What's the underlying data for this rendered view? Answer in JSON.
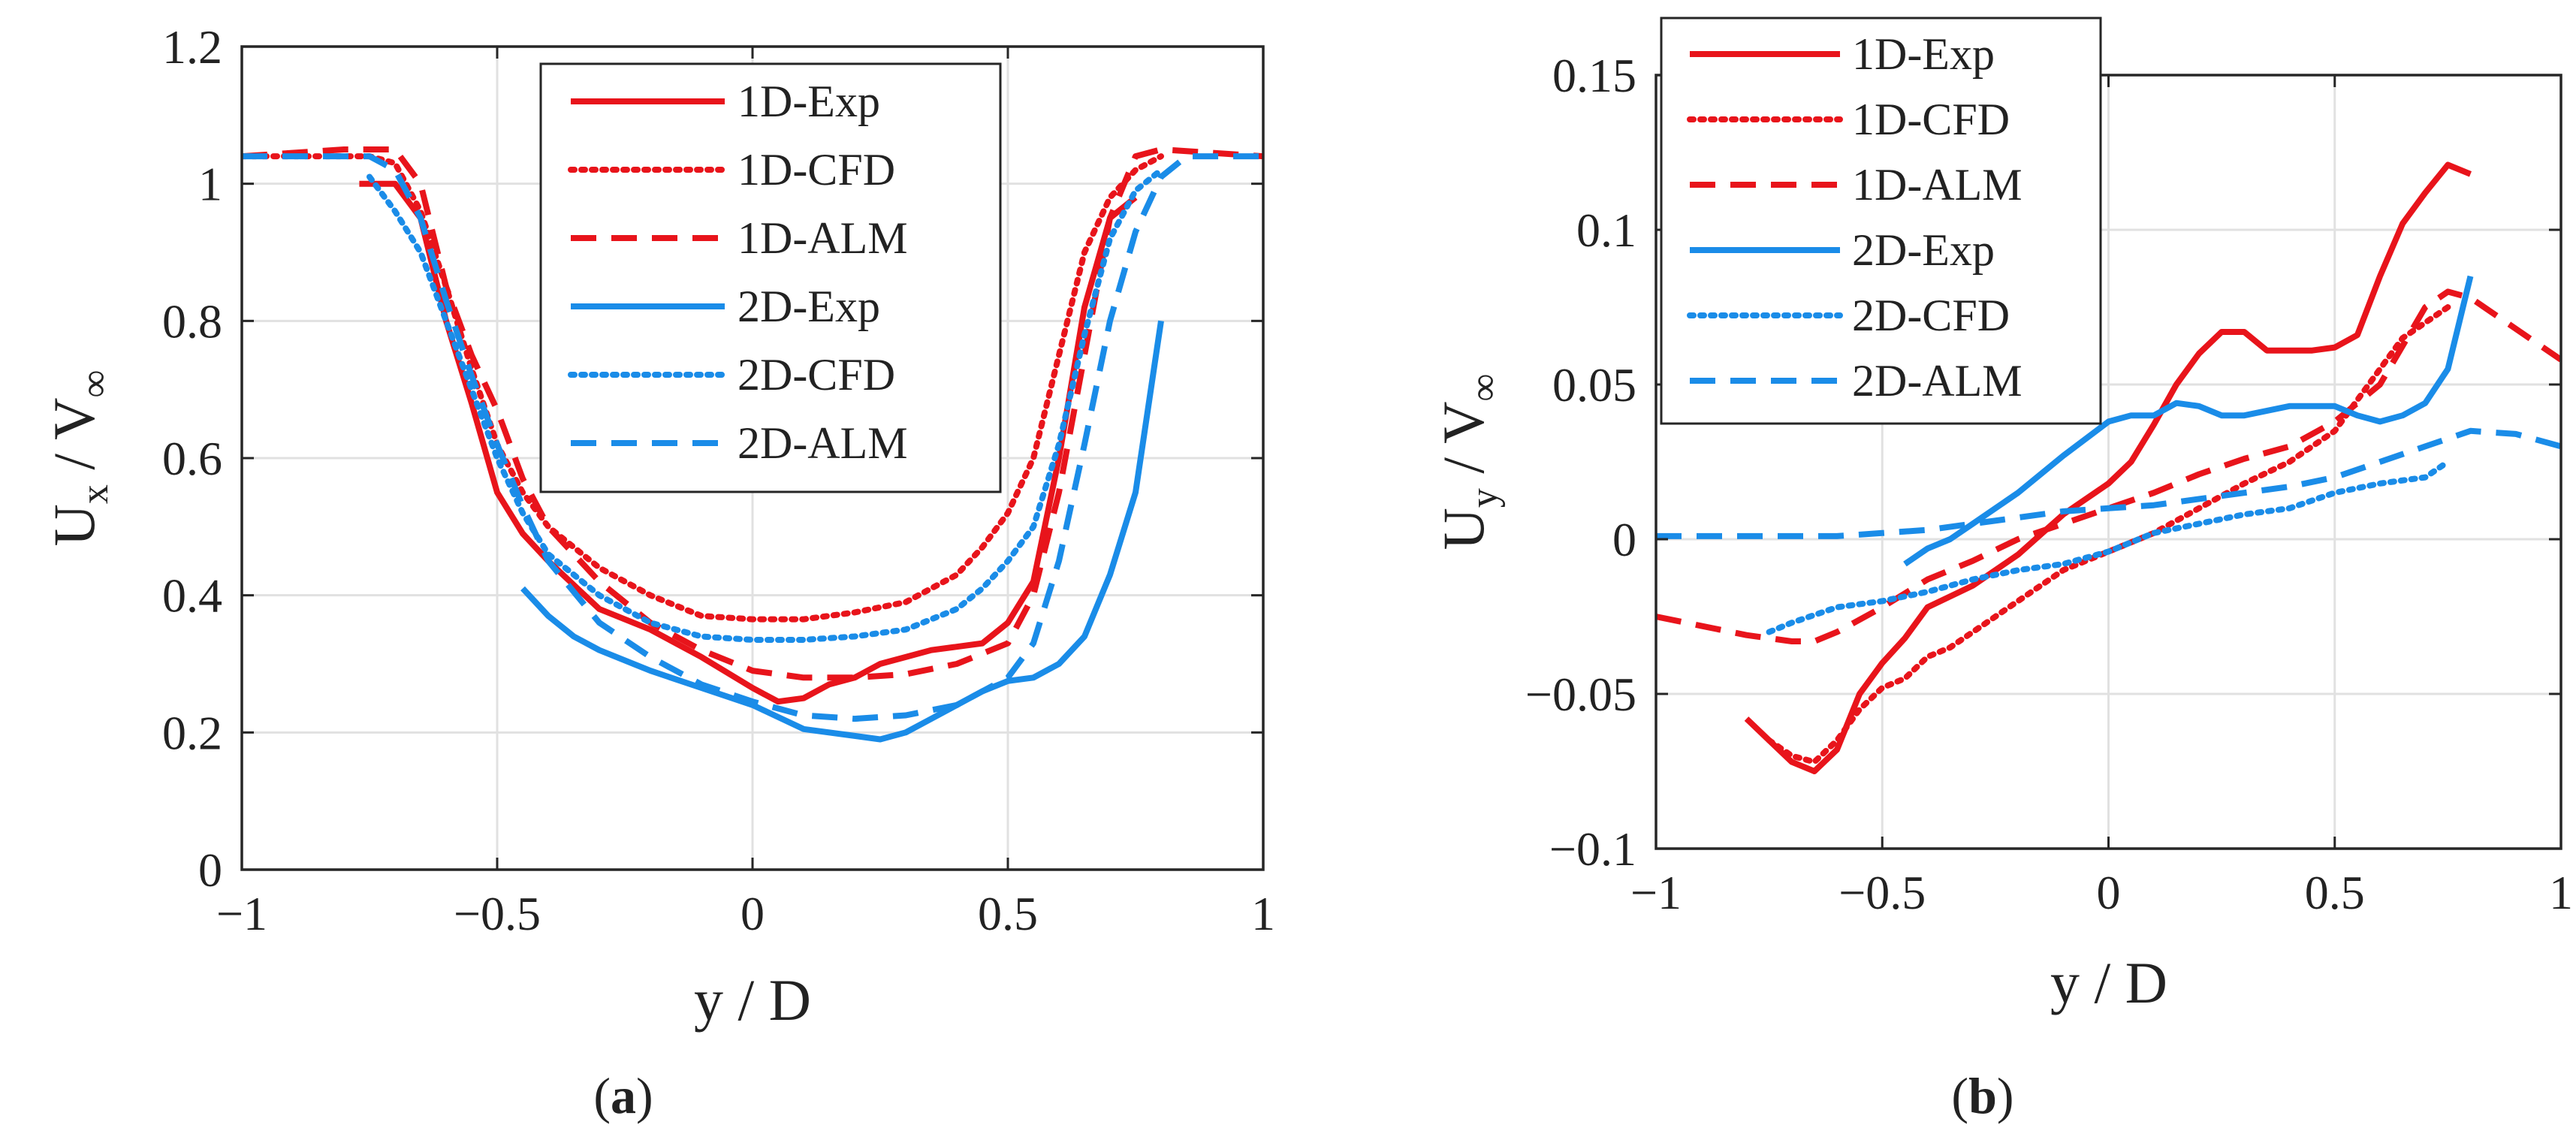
{
  "figure": {
    "captions": [
      {
        "open": "(",
        "letter": "a",
        "close": ")"
      },
      {
        "open": "(",
        "letter": "b",
        "close": ")"
      }
    ]
  },
  "styles": {
    "Exp": {
      "dash": "solid"
    },
    "CFD": {
      "dash": "dotted"
    },
    "ALM": {
      "dash": "dashed"
    }
  },
  "chart_data": [
    {
      "type": "line",
      "panel": "a",
      "xlabel": "y / D",
      "ylabel": {
        "main": "U",
        "sub": "x",
        "mid": " / V",
        "sub2": "∞"
      },
      "xlim": [
        -1,
        1
      ],
      "ylim": [
        0,
        1.2
      ],
      "xticks": [
        {
          "v": -1,
          "label": "−1"
        },
        {
          "v": -0.5,
          "label": "−0.5"
        },
        {
          "v": 0,
          "label": "0"
        },
        {
          "v": 0.5,
          "label": "0.5"
        },
        {
          "v": 1,
          "label": "1"
        }
      ],
      "yticks": [
        {
          "v": 0,
          "label": "0"
        },
        {
          "v": 0.2,
          "label": "0.2"
        },
        {
          "v": 0.4,
          "label": "0.4"
        },
        {
          "v": 0.6,
          "label": "0.6"
        },
        {
          "v": 0.8,
          "label": "0.8"
        },
        {
          "v": 1,
          "label": "1"
        },
        {
          "v": 1.2,
          "label": "1.2"
        }
      ],
      "grid": true,
      "legend": "top-center",
      "series": [
        {
          "name": "1D-Exp",
          "color": "#e8141b",
          "style": "Exp",
          "x": [
            -0.77,
            -0.7,
            -0.65,
            -0.6,
            -0.55,
            -0.5,
            -0.45,
            -0.4,
            -0.3,
            -0.2,
            -0.1,
            0,
            0.05,
            0.1,
            0.15,
            0.2,
            0.25,
            0.3,
            0.35,
            0.4,
            0.45,
            0.5,
            0.55,
            0.6,
            0.65,
            0.7,
            0.75
          ],
          "y": [
            1.0,
            1.0,
            0.95,
            0.8,
            0.68,
            0.55,
            0.49,
            0.45,
            0.38,
            0.35,
            0.31,
            0.265,
            0.245,
            0.25,
            0.27,
            0.28,
            0.3,
            0.31,
            0.32,
            0.325,
            0.33,
            0.36,
            0.42,
            0.6,
            0.82,
            0.95,
            0.98
          ]
        },
        {
          "name": "1D-CFD",
          "color": "#e8141b",
          "style": "CFD",
          "x": [
            -1,
            -0.75,
            -0.7,
            -0.65,
            -0.6,
            -0.55,
            -0.5,
            -0.45,
            -0.4,
            -0.3,
            -0.2,
            -0.1,
            0,
            0.1,
            0.2,
            0.3,
            0.35,
            0.4,
            0.45,
            0.5,
            0.55,
            0.6,
            0.65,
            0.7,
            0.75,
            0.8
          ],
          "y": [
            1.04,
            1.04,
            1.03,
            0.96,
            0.85,
            0.73,
            0.62,
            0.55,
            0.5,
            0.44,
            0.4,
            0.37,
            0.365,
            0.365,
            0.375,
            0.39,
            0.41,
            0.43,
            0.47,
            0.52,
            0.6,
            0.75,
            0.9,
            0.98,
            1.02,
            1.04
          ]
        },
        {
          "name": "1D-ALM",
          "color": "#e8141b",
          "style": "ALM",
          "x": [
            -1,
            -0.8,
            -0.7,
            -0.65,
            -0.6,
            -0.55,
            -0.5,
            -0.45,
            -0.4,
            -0.3,
            -0.2,
            -0.1,
            0,
            0.1,
            0.2,
            0.3,
            0.4,
            0.5,
            0.55,
            0.6,
            0.65,
            0.7,
            0.75,
            0.8,
            1
          ],
          "y": [
            1.04,
            1.05,
            1.05,
            1.0,
            0.85,
            0.75,
            0.67,
            0.57,
            0.5,
            0.42,
            0.36,
            0.32,
            0.29,
            0.28,
            0.28,
            0.285,
            0.3,
            0.33,
            0.4,
            0.55,
            0.75,
            0.95,
            1.04,
            1.05,
            1.04
          ]
        },
        {
          "name": "2D-Exp",
          "color": "#1a8ce8",
          "style": "Exp",
          "x": [
            -0.45,
            -0.4,
            -0.35,
            -0.3,
            -0.2,
            -0.1,
            0,
            0.1,
            0.2,
            0.25,
            0.3,
            0.35,
            0.4,
            0.45,
            0.5,
            0.55,
            0.6,
            0.65,
            0.7,
            0.75,
            0.8
          ],
          "y": [
            0.41,
            0.37,
            0.34,
            0.32,
            0.29,
            0.265,
            0.24,
            0.205,
            0.195,
            0.19,
            0.2,
            0.22,
            0.24,
            0.26,
            0.275,
            0.28,
            0.3,
            0.34,
            0.43,
            0.55,
            0.8
          ]
        },
        {
          "name": "2D-CFD",
          "color": "#1a8ce8",
          "style": "CFD",
          "x": [
            -0.75,
            -0.7,
            -0.65,
            -0.6,
            -0.55,
            -0.5,
            -0.45,
            -0.4,
            -0.3,
            -0.2,
            -0.1,
            0,
            0.1,
            0.2,
            0.3,
            0.4,
            0.45,
            0.5,
            0.55,
            0.6,
            0.65,
            0.7,
            0.75,
            0.8
          ],
          "y": [
            1.01,
            0.96,
            0.9,
            0.8,
            0.7,
            0.6,
            0.52,
            0.46,
            0.4,
            0.36,
            0.34,
            0.335,
            0.335,
            0.34,
            0.35,
            0.38,
            0.41,
            0.45,
            0.5,
            0.62,
            0.78,
            0.92,
            0.99,
            1.02
          ]
        },
        {
          "name": "2D-ALM",
          "color": "#1a8ce8",
          "style": "ALM",
          "x": [
            -1,
            -0.75,
            -0.7,
            -0.65,
            -0.6,
            -0.55,
            -0.5,
            -0.45,
            -0.4,
            -0.3,
            -0.2,
            -0.1,
            0,
            0.1,
            0.2,
            0.3,
            0.4,
            0.5,
            0.55,
            0.6,
            0.65,
            0.7,
            0.75,
            0.8,
            0.85,
            1
          ],
          "y": [
            1.04,
            1.04,
            1.02,
            0.95,
            0.83,
            0.72,
            0.62,
            0.53,
            0.45,
            0.36,
            0.31,
            0.27,
            0.245,
            0.225,
            0.22,
            0.225,
            0.24,
            0.28,
            0.33,
            0.45,
            0.62,
            0.8,
            0.93,
            1.01,
            1.04,
            1.04
          ]
        }
      ]
    },
    {
      "type": "line",
      "panel": "b",
      "xlabel": "y / D",
      "ylabel": {
        "main": "U",
        "sub": "y",
        "mid": " / V",
        "sub2": "∞"
      },
      "xlim": [
        -1,
        1
      ],
      "ylim": [
        -0.1,
        0.15
      ],
      "xticks": [
        {
          "v": -1,
          "label": "−1"
        },
        {
          "v": -0.5,
          "label": "−0.5"
        },
        {
          "v": 0,
          "label": "0"
        },
        {
          "v": 0.5,
          "label": "0.5"
        },
        {
          "v": 1,
          "label": "1"
        }
      ],
      "yticks": [
        {
          "v": -0.1,
          "label": "−0.1"
        },
        {
          "v": -0.05,
          "label": "−0.05"
        },
        {
          "v": 0,
          "label": "0"
        },
        {
          "v": 0.05,
          "label": "0.05"
        },
        {
          "v": 0.1,
          "label": "0.1"
        },
        {
          "v": 0.15,
          "label": "0.15"
        }
      ],
      "grid": true,
      "legend": "top-left",
      "series": [
        {
          "name": "1D-Exp",
          "color": "#e8141b",
          "style": "Exp",
          "x": [
            -0.8,
            -0.75,
            -0.7,
            -0.65,
            -0.6,
            -0.55,
            -0.5,
            -0.45,
            -0.4,
            -0.3,
            -0.2,
            -0.1,
            0,
            0.05,
            0.1,
            0.15,
            0.2,
            0.25,
            0.3,
            0.35,
            0.4,
            0.45,
            0.5,
            0.55,
            0.6,
            0.65,
            0.7,
            0.75,
            0.8
          ],
          "y": [
            -0.058,
            -0.065,
            -0.072,
            -0.075,
            -0.068,
            -0.05,
            -0.04,
            -0.032,
            -0.022,
            -0.015,
            -0.005,
            0.008,
            0.018,
            0.025,
            0.037,
            0.05,
            0.06,
            0.067,
            0.067,
            0.061,
            0.061,
            0.061,
            0.062,
            0.066,
            0.085,
            0.102,
            0.112,
            0.121,
            0.118
          ]
        },
        {
          "name": "1D-CFD",
          "color": "#e8141b",
          "style": "CFD",
          "x": [
            -0.75,
            -0.7,
            -0.65,
            -0.6,
            -0.55,
            -0.5,
            -0.45,
            -0.4,
            -0.35,
            -0.3,
            -0.2,
            -0.1,
            0,
            0.1,
            0.2,
            0.3,
            0.4,
            0.5,
            0.55,
            0.6,
            0.65,
            0.7,
            0.75
          ],
          "y": [
            -0.065,
            -0.07,
            -0.072,
            -0.065,
            -0.055,
            -0.048,
            -0.045,
            -0.038,
            -0.035,
            -0.03,
            -0.02,
            -0.01,
            -0.004,
            0.002,
            0.01,
            0.018,
            0.025,
            0.035,
            0.045,
            0.055,
            0.065,
            0.07,
            0.075
          ]
        },
        {
          "name": "1D-ALM",
          "color": "#e8141b",
          "style": "ALM",
          "x": [
            -1,
            -0.9,
            -0.8,
            -0.7,
            -0.65,
            -0.6,
            -0.5,
            -0.4,
            -0.3,
            -0.2,
            -0.1,
            0,
            0.1,
            0.2,
            0.3,
            0.4,
            0.5,
            0.6,
            0.7,
            0.75,
            0.8,
            0.9,
            1
          ],
          "y": [
            -0.025,
            -0.028,
            -0.031,
            -0.033,
            -0.033,
            -0.03,
            -0.022,
            -0.013,
            -0.007,
            0.0,
            0.005,
            0.01,
            0.015,
            0.021,
            0.026,
            0.03,
            0.038,
            0.05,
            0.075,
            0.08,
            0.078,
            0.068,
            0.058
          ]
        },
        {
          "name": "2D-Exp",
          "color": "#1a8ce8",
          "style": "Exp",
          "x": [
            -0.45,
            -0.4,
            -0.35,
            -0.3,
            -0.2,
            -0.1,
            0,
            0.05,
            0.1,
            0.15,
            0.2,
            0.25,
            0.3,
            0.4,
            0.45,
            0.5,
            0.55,
            0.6,
            0.65,
            0.7,
            0.75,
            0.8
          ],
          "y": [
            -0.008,
            -0.003,
            0.0,
            0.005,
            0.015,
            0.027,
            0.038,
            0.04,
            0.04,
            0.044,
            0.043,
            0.04,
            0.04,
            0.043,
            0.043,
            0.043,
            0.04,
            0.038,
            0.04,
            0.044,
            0.055,
            0.085
          ]
        },
        {
          "name": "2D-CFD",
          "color": "#1a8ce8",
          "style": "CFD",
          "x": [
            -0.75,
            -0.7,
            -0.6,
            -0.5,
            -0.4,
            -0.3,
            -0.2,
            -0.1,
            0,
            0.1,
            0.2,
            0.3,
            0.4,
            0.5,
            0.6,
            0.7,
            0.75
          ],
          "y": [
            -0.03,
            -0.027,
            -0.022,
            -0.02,
            -0.017,
            -0.013,
            -0.01,
            -0.008,
            -0.004,
            0.002,
            0.005,
            0.008,
            0.01,
            0.015,
            0.018,
            0.02,
            0.025
          ]
        },
        {
          "name": "2D-ALM",
          "color": "#1a8ce8",
          "style": "ALM",
          "x": [
            -1,
            -0.8,
            -0.6,
            -0.5,
            -0.4,
            -0.3,
            -0.2,
            -0.1,
            0,
            0.1,
            0.2,
            0.3,
            0.4,
            0.5,
            0.6,
            0.7,
            0.8,
            0.9,
            1
          ],
          "y": [
            0.001,
            0.001,
            0.001,
            0.002,
            0.003,
            0.005,
            0.007,
            0.009,
            0.01,
            0.011,
            0.013,
            0.015,
            0.017,
            0.02,
            0.025,
            0.03,
            0.035,
            0.034,
            0.03
          ]
        }
      ]
    }
  ]
}
